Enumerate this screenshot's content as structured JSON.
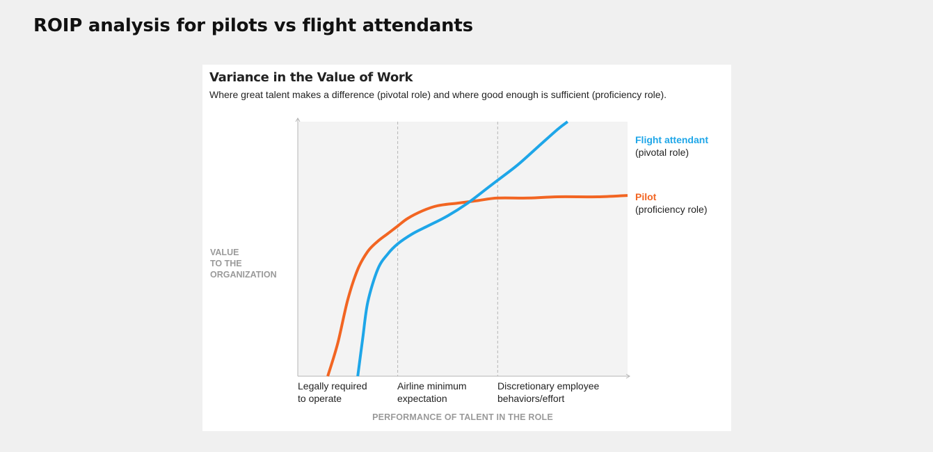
{
  "page": {
    "heading": "ROIP analysis for pilots vs flight attendants"
  },
  "colors": {
    "flight_attendant": "#1ea6e8",
    "pilot": "#f26522",
    "axis_label": "#9a9a9a",
    "plot_background": "#f3f3f3"
  },
  "chart_data": {
    "type": "line",
    "title": "Variance in the Value of Work",
    "subtitle": "Where great talent makes a difference (pivotal role) and where good enough is sufficient (proficiency role).",
    "xlabel": "PERFORMANCE OF TALENT IN THE ROLE",
    "ylabel": "VALUE\nTO THE\nORGANIZATION",
    "x_ticks": [
      "Legally required\nto operate",
      "Airline minimum\nexpectation",
      "Discretionary employee\nbehaviors/effort"
    ],
    "xlim": [
      0,
      3.3
    ],
    "ylim": [
      0,
      1
    ],
    "grid": "dashed vertical lines at x ticks 1 and 2",
    "series": [
      {
        "name": "Flight attendant",
        "role": "(pivotal role)",
        "x": [
          0.6,
          0.65,
          0.7,
          0.8,
          0.9,
          1.0,
          1.15,
          1.3,
          1.5,
          1.7,
          1.9,
          2.0,
          2.2,
          2.4,
          2.6,
          2.7
        ],
        "y": [
          0.0,
          0.15,
          0.29,
          0.42,
          0.48,
          0.52,
          0.56,
          0.59,
          0.63,
          0.68,
          0.74,
          0.77,
          0.83,
          0.9,
          0.97,
          1.0
        ]
      },
      {
        "name": "Pilot",
        "role": "(proficiency role)",
        "x": [
          0.3,
          0.4,
          0.5,
          0.6,
          0.7,
          0.8,
          0.9,
          1.0,
          1.1,
          1.25,
          1.4,
          1.6,
          1.8,
          2.0,
          2.3,
          2.6,
          3.0,
          3.3
        ],
        "y": [
          0.0,
          0.13,
          0.3,
          0.42,
          0.49,
          0.53,
          0.56,
          0.59,
          0.62,
          0.65,
          0.67,
          0.68,
          0.69,
          0.7,
          0.7,
          0.705,
          0.705,
          0.71
        ]
      }
    ]
  }
}
